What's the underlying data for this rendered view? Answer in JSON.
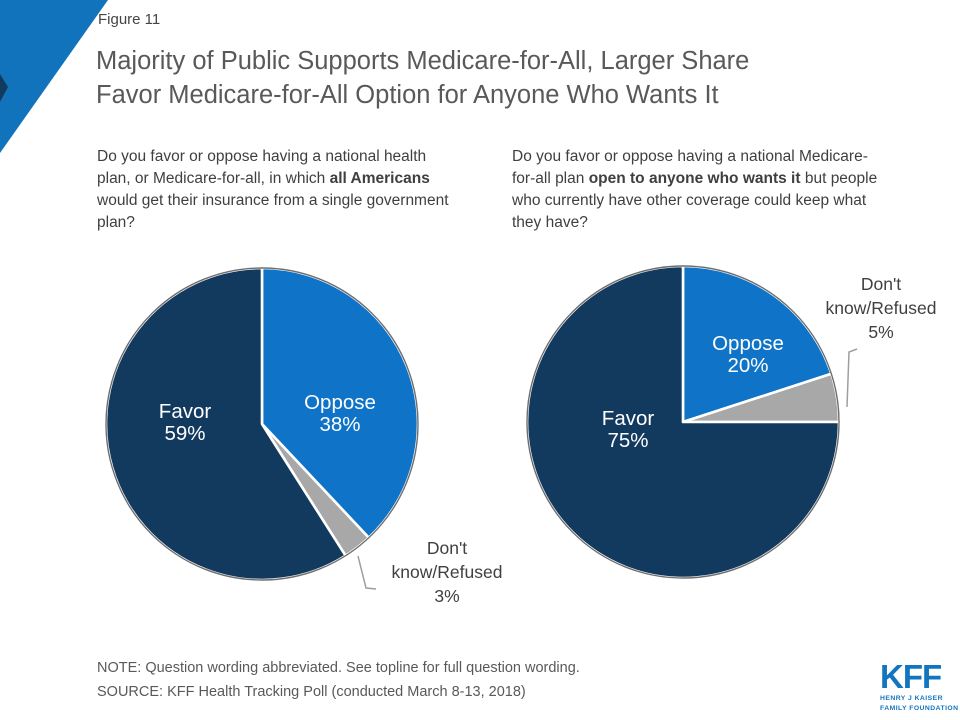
{
  "slide": {
    "figure_label": "Figure 11",
    "title_lines": [
      "Majority of Public Supports Medicare-for-All, Larger Share",
      "Favor Medicare-for-All Option for Anyone Who Wants It"
    ],
    "note": "NOTE: Question wording abbreviated. See topline for full question wording.",
    "source": "SOURCE: KFF Health Tracking Poll (conducted March 8-13, 2018)",
    "logo": {
      "name": "KFF",
      "tagline_line1": "HENRY J KAISER",
      "tagline_line2": "FAMILY FOUNDATION"
    },
    "colors": {
      "brand_blue": "#1375BE",
      "accent_triangle": "#1273BD",
      "pie_blue": "#0F74C7",
      "pie_navy": "#123A5F",
      "pie_gray": "#A8A8A8",
      "title_gray": "#58595B",
      "text_dark": "#404040"
    }
  },
  "chart_data": [
    {
      "type": "pie",
      "title": "",
      "direction": "clockwise",
      "start_angle_deg": 0,
      "legend_position": "none",
      "question_parts": [
        {
          "text": "Do you favor or oppose having a national health plan, or Medicare-for-all, in which ",
          "bold": false
        },
        {
          "text": "all Americans",
          "bold": true
        },
        {
          "text": " would get their insurance from a single government plan?",
          "bold": false
        }
      ],
      "slices": [
        {
          "label": "Oppose",
          "value": 38,
          "pct_text": "38%",
          "color": "#0F74C7",
          "label_lines": [
            "Oppose",
            "38%"
          ]
        },
        {
          "label": "Don't know/Refused",
          "value": 3,
          "pct_text": "3%",
          "color": "#A8A8A8",
          "label_lines": [
            "Don't",
            "know/Refused",
            "3%"
          ]
        },
        {
          "label": "Favor",
          "value": 59,
          "pct_text": "59%",
          "color": "#123A5F",
          "label_lines": [
            "Favor",
            "59%"
          ]
        }
      ]
    },
    {
      "type": "pie",
      "title": "",
      "direction": "clockwise",
      "start_angle_deg": 0,
      "legend_position": "none",
      "question_parts": [
        {
          "text": "Do you favor or oppose having a national Medicare-for-all plan ",
          "bold": false
        },
        {
          "text": "open to anyone who wants it",
          "bold": true
        },
        {
          "text": " but people who currently have other coverage could keep what they have?",
          "bold": false
        }
      ],
      "slices": [
        {
          "label": "Oppose",
          "value": 20,
          "pct_text": "20%",
          "color": "#0F74C7",
          "label_lines": [
            "Oppose",
            "20%"
          ]
        },
        {
          "label": "Don't know/Refused",
          "value": 5,
          "pct_text": "5%",
          "color": "#A8A8A8",
          "label_lines": [
            "Don't",
            "know/Refused",
            "5%"
          ]
        },
        {
          "label": "Favor",
          "value": 75,
          "pct_text": "75%",
          "color": "#123A5F",
          "label_lines": [
            "Favor",
            "75%"
          ]
        }
      ]
    }
  ]
}
